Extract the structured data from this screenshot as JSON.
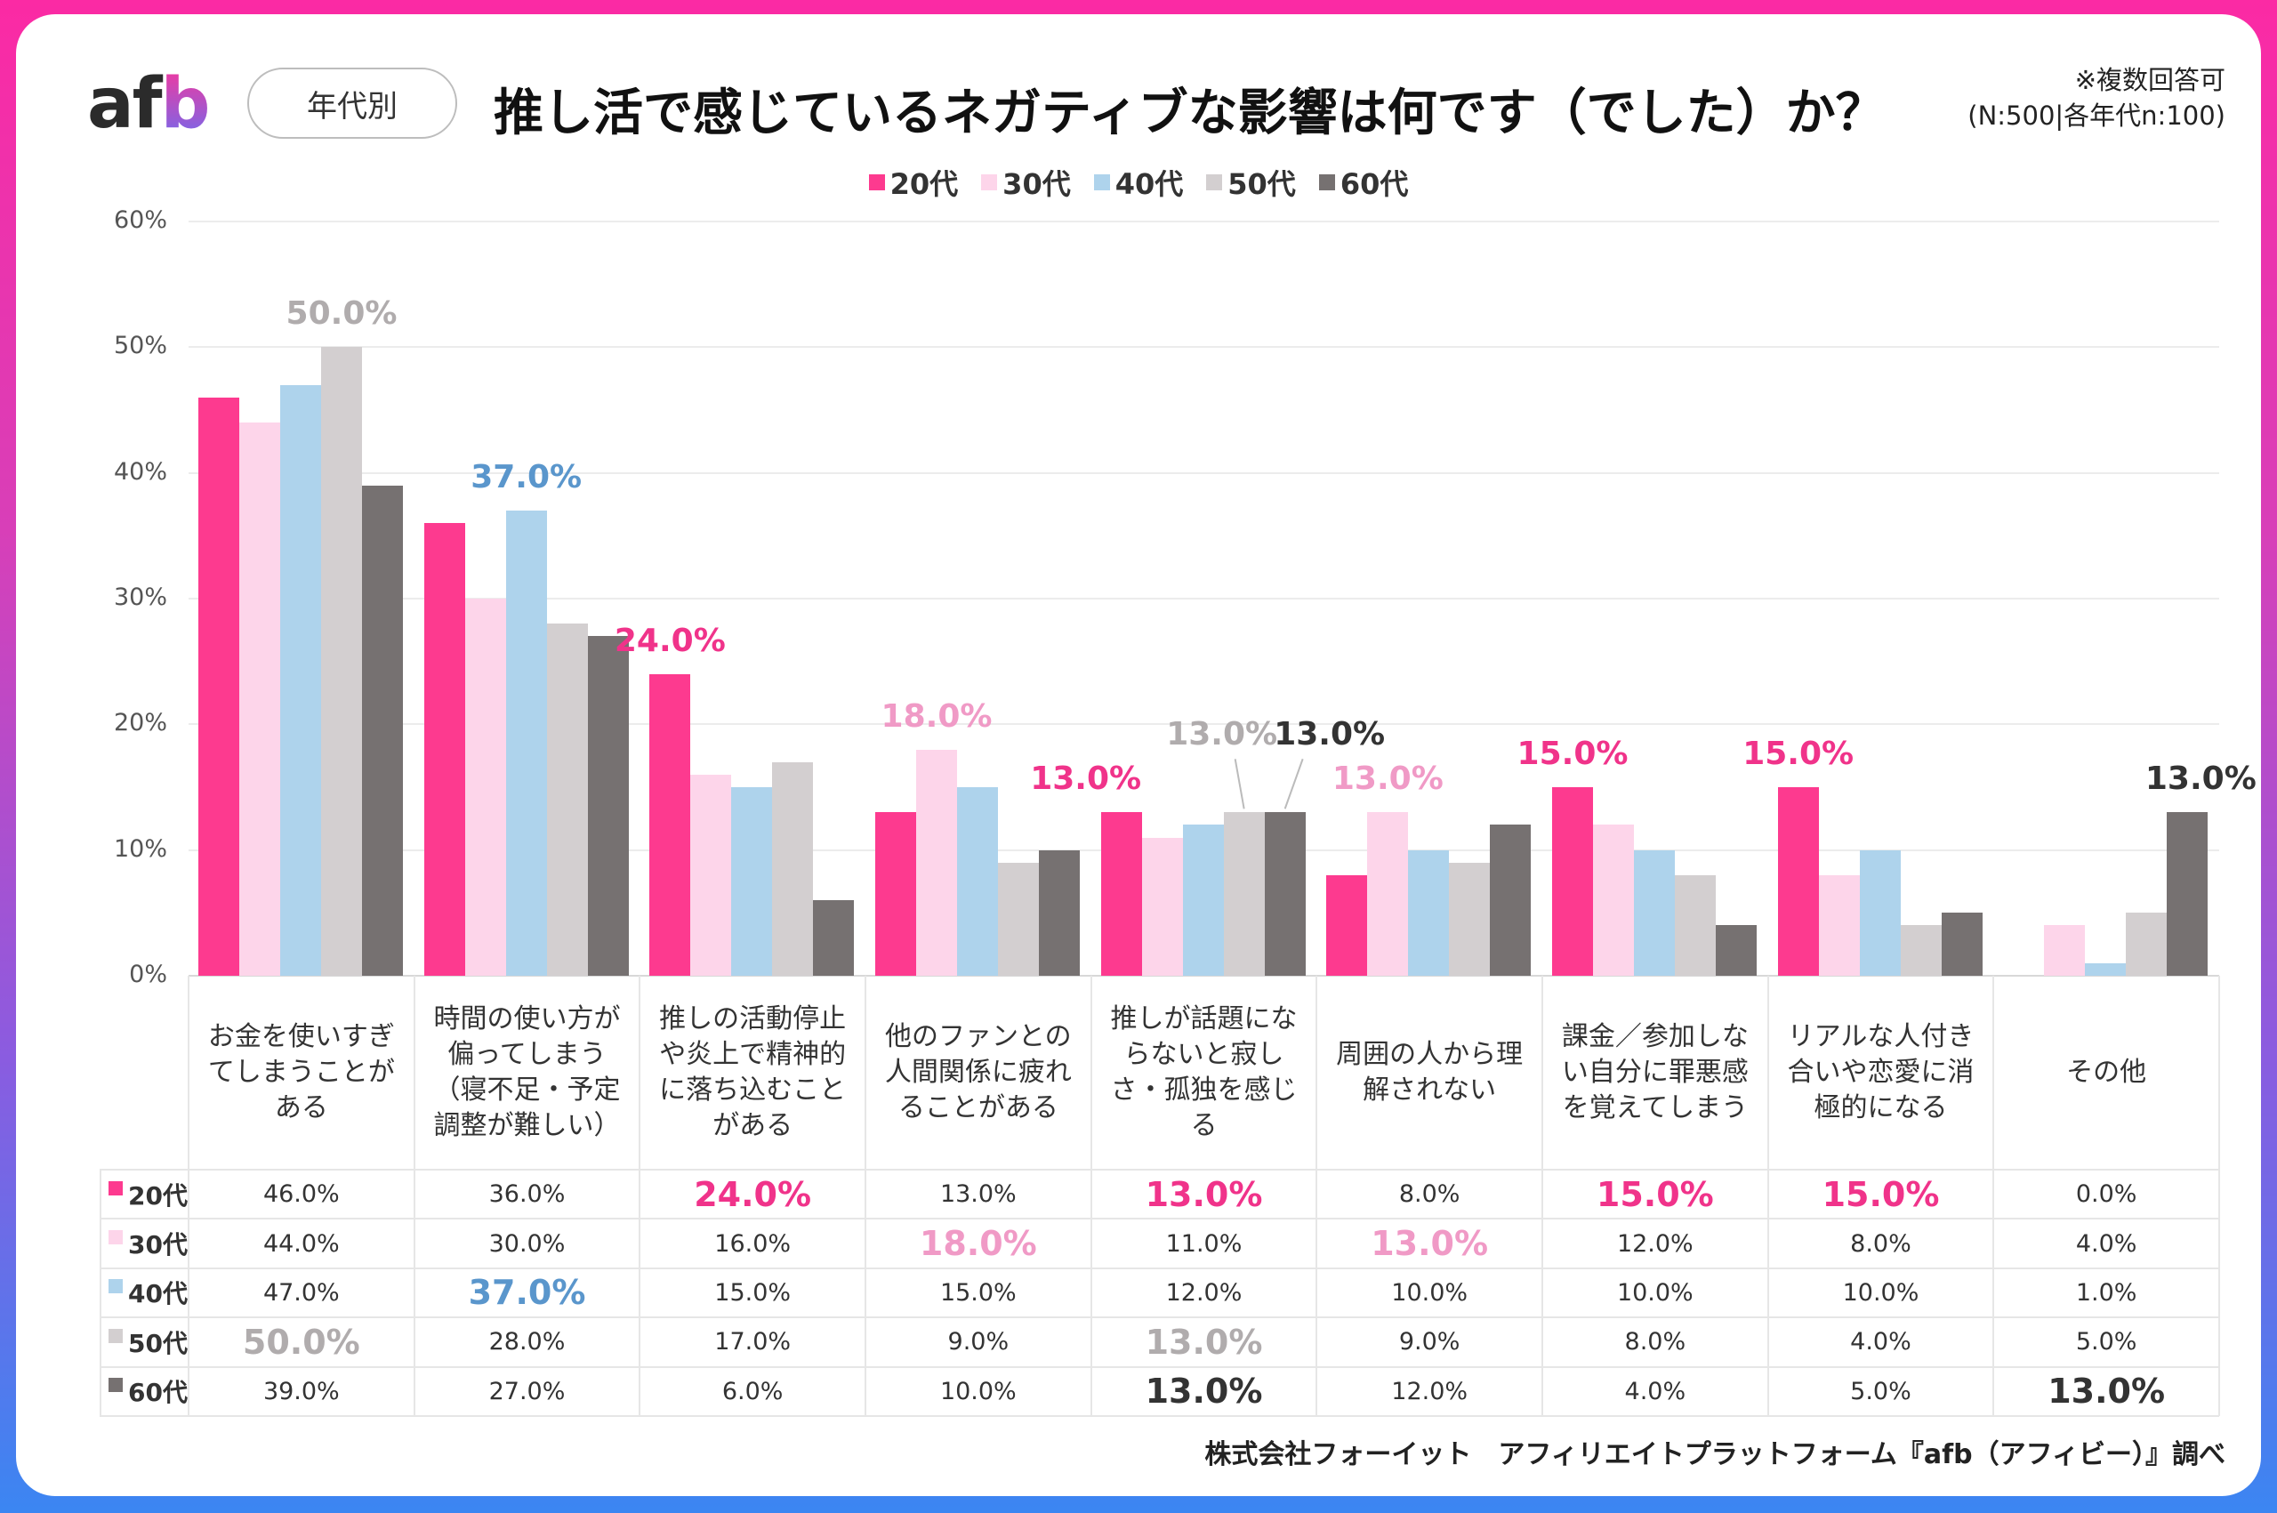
{
  "header": {
    "logo": "afb",
    "tag": "年代別",
    "title": "推し活で感じているネガティブな影響は何です（でした）か？",
    "note_line1": "※複数回答可",
    "note_line2": "(N:500|各年代n:100)"
  },
  "footer": "株式会社フォーイット　アフィリエイトプラットフォーム『afb（アフィビー）』調べ",
  "chart_data": {
    "type": "bar",
    "title": "推し活で感じているネガティブな影響は何です（でした）か？",
    "ylim": [
      0,
      60
    ],
    "yticks": [
      "0%",
      "10%",
      "20%",
      "30%",
      "40%",
      "50%",
      "60%"
    ],
    "grid": true,
    "legend_placement": "top",
    "categories": [
      "お金を使いすぎてしまうことがある",
      "時間の使い方が偏ってしまう（寝不足・予定調整が難しい）",
      "推しの活動停止や炎上で精神的に落ち込むことがある",
      "他のファンとの人間関係に疲れることがある",
      "推しが話題にならないと寂しさ・孤独を感じる",
      "周囲の人から理解されない",
      "課金／参加しない自分に罪悪感を覚えてしまう",
      "リアルな人付き合いや恋愛に消極的になる",
      "その他"
    ],
    "series": [
      {
        "name": "20代",
        "color": "#fd3a8f",
        "label_color": "#f0338a",
        "values": [
          46,
          36,
          24,
          13,
          13,
          8,
          15,
          15,
          0
        ]
      },
      {
        "name": "30代",
        "color": "#fdd5ea",
        "label_color": "#f09ac6",
        "values": [
          44,
          30,
          16,
          18,
          11,
          13,
          12,
          8,
          4
        ]
      },
      {
        "name": "40代",
        "color": "#aed3ec",
        "label_color": "#5a96cc",
        "values": [
          47,
          37,
          15,
          15,
          12,
          10,
          10,
          10,
          1
        ]
      },
      {
        "name": "50代",
        "color": "#d3cfd0",
        "label_color": "#b0acad",
        "values": [
          50,
          28,
          17,
          9,
          13,
          9,
          8,
          4,
          5
        ]
      },
      {
        "name": "60代",
        "color": "#767171",
        "label_color": "#333333",
        "values": [
          39,
          27,
          6,
          10,
          13,
          12,
          4,
          5,
          13
        ]
      }
    ],
    "highlights": [
      [
        0,
        3
      ],
      [
        1,
        2
      ],
      [
        2,
        0
      ],
      [
        3,
        1
      ],
      [
        4,
        0
      ],
      [
        4,
        3
      ],
      [
        4,
        4
      ],
      [
        5,
        1
      ],
      [
        6,
        0
      ],
      [
        7,
        0
      ],
      [
        8,
        4
      ]
    ],
    "value_format": "0.0%"
  }
}
